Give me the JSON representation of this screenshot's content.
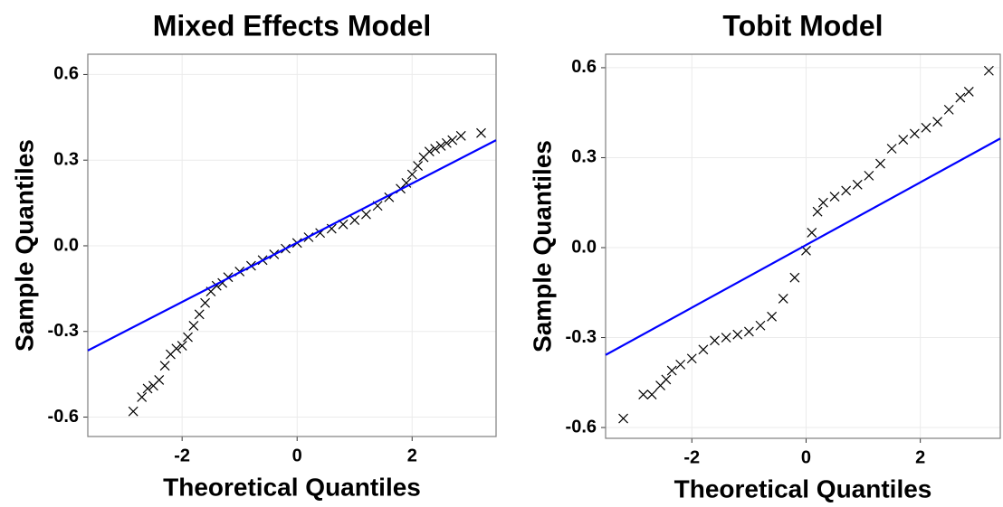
{
  "chart_data": [
    {
      "type": "scatter",
      "title": "Mixed Effects Model",
      "x_label": "Theoretical Quantiles",
      "y_label": "Sample Quantiles",
      "marker_color": "#000000",
      "grid": true,
      "x": [
        -2.85,
        -2.7,
        -2.6,
        -2.5,
        -2.4,
        -2.3,
        -2.2,
        -2.1,
        -2.0,
        -1.9,
        -1.8,
        -1.7,
        -1.6,
        -1.5,
        -1.4,
        -1.3,
        -1.2,
        -1.0,
        -0.8,
        -0.6,
        -0.4,
        -0.2,
        0,
        0.2,
        0.4,
        0.6,
        0.8,
        1.0,
        1.2,
        1.4,
        1.6,
        1.8,
        1.9,
        2.0,
        2.1,
        2.2,
        2.3,
        2.4,
        2.5,
        2.6,
        2.7,
        2.85,
        3.2
      ],
      "values": [
        -0.58,
        -0.53,
        -0.5,
        -0.49,
        -0.47,
        -0.42,
        -0.38,
        -0.36,
        -0.35,
        -0.32,
        -0.28,
        -0.24,
        -0.2,
        -0.16,
        -0.14,
        -0.13,
        -0.11,
        -0.09,
        -0.07,
        -0.05,
        -0.03,
        -0.01,
        0.01,
        0.03,
        0.045,
        0.06,
        0.075,
        0.09,
        0.11,
        0.14,
        0.17,
        0.2,
        0.22,
        0.25,
        0.28,
        0.31,
        0.33,
        0.34,
        0.35,
        0.36,
        0.37,
        0.385,
        0.395
      ],
      "reference_line": {
        "color": "#0000ff",
        "x": [
          -3.64,
          3.46
        ],
        "values": [
          -0.367,
          0.37
        ]
      },
      "xlim": [
        -3.64,
        3.46
      ],
      "xticks": [
        -2,
        0,
        2
      ],
      "ylim": [
        -0.668,
        0.671
      ],
      "yticks": [
        -0.6,
        -0.3,
        {
          "value": 0,
          "label": "0.0"
        },
        0.3,
        0.6
      ]
    },
    {
      "type": "scatter",
      "title": "Tobit Model",
      "x_label": "Theoretical Quantiles",
      "y_label": "Sample Quantiles",
      "marker_color": "#000000",
      "grid": true,
      "x": [
        -3.2,
        -2.85,
        -2.7,
        -2.55,
        -2.45,
        -2.35,
        -2.2,
        -2.0,
        -1.8,
        -1.6,
        -1.4,
        -1.2,
        -1.0,
        -0.8,
        -0.6,
        -0.4,
        -0.2,
        0,
        0.1,
        0.2,
        0.3,
        0.5,
        0.7,
        0.9,
        1.1,
        1.3,
        1.5,
        1.7,
        1.9,
        2.1,
        2.3,
        2.5,
        2.7,
        2.85,
        3.2
      ],
      "values": [
        -0.57,
        -0.49,
        -0.49,
        -0.46,
        -0.44,
        -0.41,
        -0.39,
        -0.37,
        -0.34,
        -0.31,
        -0.3,
        -0.29,
        -0.28,
        -0.26,
        -0.23,
        -0.17,
        -0.1,
        -0.01,
        0.05,
        0.12,
        0.15,
        0.17,
        0.19,
        0.21,
        0.24,
        0.28,
        0.33,
        0.36,
        0.38,
        0.4,
        0.42,
        0.46,
        0.5,
        0.52,
        0.59
      ],
      "reference_line": {
        "color": "#0000ff",
        "x": [
          -3.51,
          3.4
        ],
        "values": [
          -0.358,
          0.364
        ]
      },
      "xlim": [
        -3.51,
        3.4
      ],
      "xticks": [
        -2,
        0,
        2
      ],
      "ylim": [
        -0.636,
        0.645
      ],
      "yticks": [
        -0.6,
        -0.3,
        {
          "value": 0,
          "label": "0.0"
        },
        0.3,
        0.6
      ]
    }
  ]
}
